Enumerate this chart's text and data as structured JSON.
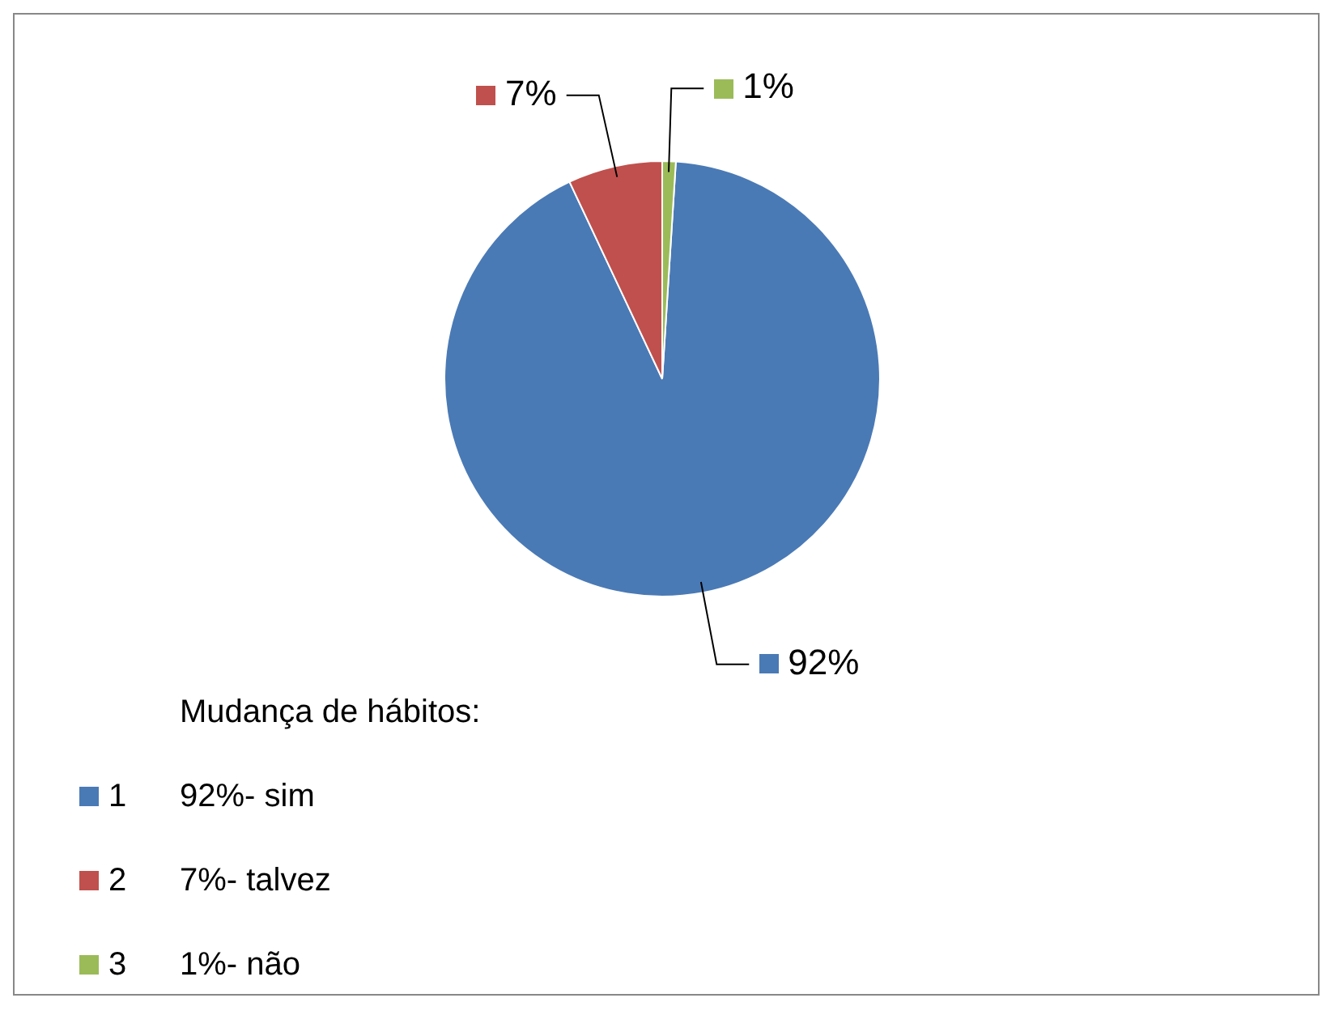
{
  "chart_data": {
    "type": "pie",
    "categories": [
      "1",
      "2",
      "3"
    ],
    "values": [
      92,
      7,
      1
    ],
    "colors": [
      "#4a7ab5",
      "#c0504d",
      "#9bbb59"
    ],
    "value_labels": [
      "92%",
      "7%",
      "1%"
    ],
    "legend": "bottom left",
    "legend_title": "Mudança de hábitos:",
    "annotations": [
      "92%- sim",
      "7%- talvez",
      "1%- não"
    ]
  }
}
